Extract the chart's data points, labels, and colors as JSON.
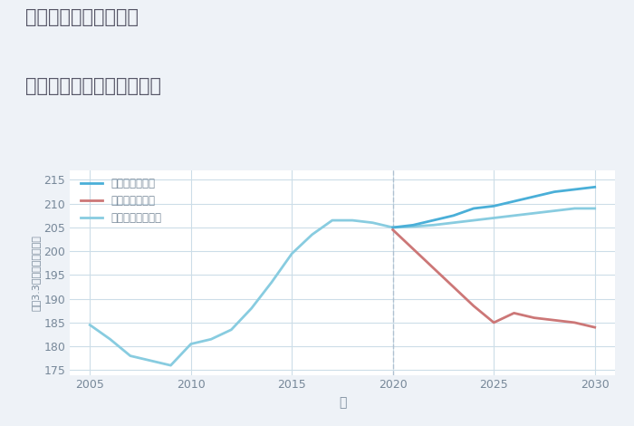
{
  "title_line1": "兵庫県西宮市浜脇町の",
  "title_line2": "中古マンションの価格推移",
  "xlabel": "年",
  "ylabel": "坪（3.3㎡）単価（万円）",
  "background_color": "#eef2f7",
  "plot_bg_color": "#ffffff",
  "xlim": [
    2004,
    2031
  ],
  "ylim": [
    174,
    217
  ],
  "yticks": [
    175,
    180,
    185,
    190,
    195,
    200,
    205,
    210,
    215
  ],
  "xticks": [
    2005,
    2010,
    2015,
    2020,
    2025,
    2030
  ],
  "normal_scenario": {
    "label": "ノーマルシナリオ",
    "color": "#88cce0",
    "years": [
      2005,
      2006,
      2007,
      2008,
      2009,
      2010,
      2011,
      2012,
      2013,
      2014,
      2015,
      2016,
      2017,
      2018,
      2019,
      2020,
      2021,
      2022,
      2023,
      2024,
      2025,
      2026,
      2027,
      2028,
      2029,
      2030
    ],
    "values": [
      184.5,
      181.5,
      178.0,
      177.0,
      176.0,
      180.5,
      181.5,
      183.5,
      188.0,
      193.5,
      199.5,
      203.5,
      206.5,
      206.5,
      206.0,
      205.0,
      205.2,
      205.5,
      206.0,
      206.5,
      207.0,
      207.5,
      208.0,
      208.5,
      209.0,
      209.0
    ]
  },
  "good_scenario": {
    "label": "グッドシナリオ",
    "color": "#4aafd8",
    "years": [
      2020,
      2021,
      2022,
      2023,
      2024,
      2025,
      2026,
      2027,
      2028,
      2029,
      2030
    ],
    "values": [
      205.0,
      205.5,
      206.5,
      207.5,
      209.0,
      209.5,
      210.5,
      211.5,
      212.5,
      213.0,
      213.5
    ]
  },
  "bad_scenario": {
    "label": "バッドシナリオ",
    "color": "#cc7777",
    "years": [
      2020,
      2021,
      2022,
      2023,
      2024,
      2025,
      2026,
      2027,
      2028,
      2029,
      2030
    ],
    "values": [
      204.5,
      200.5,
      196.5,
      192.5,
      188.5,
      185.0,
      187.0,
      186.0,
      185.5,
      185.0,
      184.0
    ]
  },
  "legend_labels": [
    "グッドシナリオ",
    "バッドシナリオ",
    "ノーマルシナリオ"
  ],
  "legend_colors": [
    "#4aafd8",
    "#cc7777",
    "#88cce0"
  ],
  "title_color": "#555566",
  "axis_color": "#778899",
  "grid_color": "#ccdde8",
  "vline_color": "#aabbcc",
  "vline_x": 2020
}
